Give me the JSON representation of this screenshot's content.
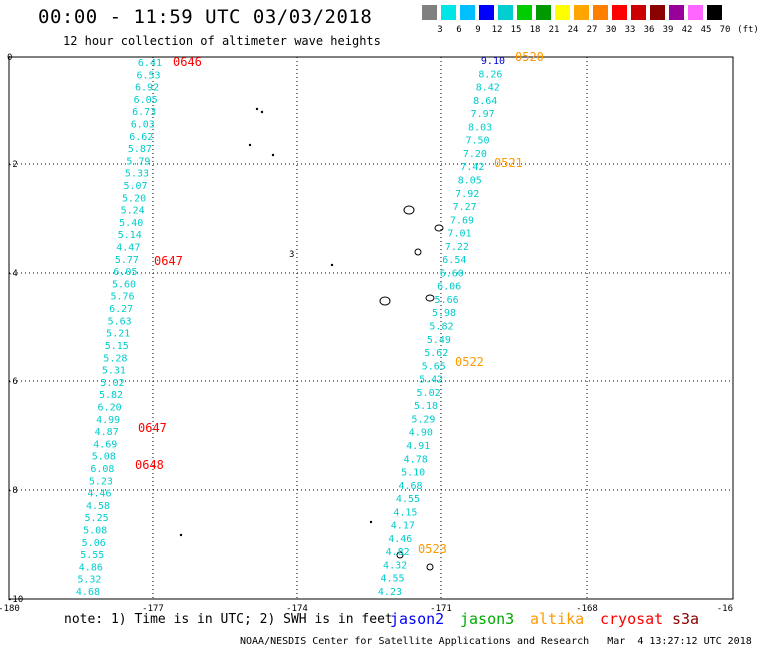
{
  "header": {
    "title": "00:00 - 11:59 UTC 03/03/2018",
    "subtitle": "12 hour collection of altimeter wave heights"
  },
  "color_scale": {
    "labels": [
      "3",
      "6",
      "9",
      "12",
      "15",
      "18",
      "21",
      "24",
      "27",
      "30",
      "33",
      "36",
      "39",
      "42",
      "45",
      "70",
      "(ft)"
    ],
    "colors": [
      "#808080",
      "#00e5e5",
      "#00bfff",
      "#0000ff",
      "#00ced1",
      "#00cd00",
      "#009900",
      "#ffff00",
      "#ffa500",
      "#ff7f00",
      "#ff0000",
      "#cc0000",
      "#8b0000",
      "#990099",
      "#ff66ff",
      "#000000"
    ]
  },
  "map": {
    "lon_labels": [
      "-180",
      "-177",
      "-174",
      "-171",
      "-168",
      "-16"
    ],
    "lat_labels": [
      "0",
      "-2",
      "-4",
      "-6",
      "-8",
      "-10"
    ]
  },
  "tracks": [
    {
      "name": "left-track",
      "color": "#00cdcd",
      "values": [
        "6.41",
        "6.53",
        "6.92",
        "6.05",
        "6.73",
        "6.03",
        "6.62",
        "5.87",
        "5.79",
        "5.33",
        "5.07",
        "5.20",
        "5.24",
        "5.40",
        "5.14",
        "4.47",
        "5.77",
        "6.05",
        "5.60",
        "5.76",
        "6.27",
        "5.63",
        "5.21",
        "5.15",
        "5.28",
        "5.31",
        "5.02",
        "5.82",
        "6.20",
        "4.99",
        "4.87",
        "4.69",
        "5.08",
        "6.08",
        "5.23",
        "4.46",
        "4.58",
        "5.25",
        "5.08",
        "5.06",
        "5.55",
        "4.86",
        "5.32",
        "4.68"
      ]
    },
    {
      "name": "right-track",
      "color": "#00cdcd",
      "first_color": "#0000cd",
      "values": [
        "9.10",
        "8.26",
        "8.42",
        "8.64",
        "7.97",
        "8.03",
        "7.50",
        "7.20",
        "7.42",
        "8.05",
        "7.92",
        "7.27",
        "7.69",
        "7.01",
        "7.22",
        "6.54",
        "6.60",
        "6.06",
        "5.66",
        "5.98",
        "5.82",
        "5.49",
        "5.62",
        "5.65",
        "5.42",
        "5.02",
        "5.18",
        "5.29",
        "4.90",
        "4.91",
        "4.78",
        "5.10",
        "4.68",
        "4.55",
        "4.15",
        "4.17",
        "4.46",
        "4.82",
        "4.32",
        "4.55",
        "4.23"
      ]
    }
  ],
  "time_labels": [
    {
      "text": "0646",
      "color": "#ff0000"
    },
    {
      "text": "0647",
      "color": "#ff0000"
    },
    {
      "text": "0647",
      "color": "#ff0000"
    },
    {
      "text": "0648",
      "color": "#ff0000"
    },
    {
      "text": "0520",
      "color": "#ff9900"
    },
    {
      "text": "0521",
      "color": "#ff9900"
    },
    {
      "text": "0522",
      "color": "#ff9900"
    },
    {
      "text": "0523",
      "color": "#ff9900"
    }
  ],
  "islands_label": "3",
  "footer": {
    "note": "note: 1) Time is in UTC; 2) SWH is in feet",
    "legend": [
      {
        "text": "jason2",
        "color": "#0000ff"
      },
      {
        "text": "jason3",
        "color": "#00aa00"
      },
      {
        "text": "altika",
        "color": "#ff9900"
      },
      {
        "text": "cryosat",
        "color": "#ff0000"
      },
      {
        "text": "s3a",
        "color": "#880000"
      }
    ],
    "credit": "NOAA/NESDIS Center for Satellite Applications and Research   Mar  4 13:27:12 UTC 2018"
  }
}
